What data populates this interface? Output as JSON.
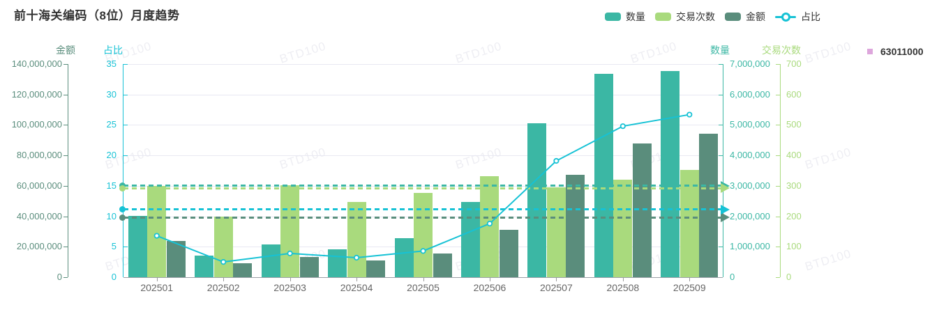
{
  "title": "前十海关编码（8位）月度趋势",
  "legend": {
    "position": "top-right",
    "items": [
      {
        "label": "数量",
        "type": "bar",
        "color": "#3bb7a4"
      },
      {
        "label": "交易次数",
        "type": "bar",
        "color": "#a9da7d"
      },
      {
        "label": "金额",
        "type": "bar",
        "color": "#5a8d7c"
      },
      {
        "label": "占比",
        "type": "line",
        "color": "#16c2d5"
      }
    ]
  },
  "side_legend": {
    "label": "63011000",
    "color": "#dda6dc"
  },
  "watermark_text": "BTD100",
  "chart_data": {
    "type": "combo bar+line, 4 y-axes",
    "title": "前十海关编码（8位）月度趋势",
    "categories": [
      "202501",
      "202502",
      "202503",
      "202504",
      "202505",
      "202506",
      "202507",
      "202508",
      "202509"
    ],
    "series": [
      {
        "name": "数量",
        "type": "bar",
        "yaxis": "quantity",
        "color": "#3bb7a4",
        "values": [
          2010000,
          700000,
          1070000,
          910000,
          1270000,
          2470000,
          5060000,
          6690000,
          6780000
        ],
        "average_markline": 3000000
      },
      {
        "name": "交易次数",
        "type": "bar",
        "yaxis": "transactions",
        "color": "#a9da7d",
        "values": [
          300,
          199,
          303,
          248,
          276,
          332,
          295,
          320,
          352
        ],
        "average_markline": 292
      },
      {
        "name": "金额",
        "type": "bar",
        "yaxis": "amount",
        "color": "#5a8d7c",
        "values": [
          23600000,
          9150000,
          13400000,
          11100000,
          15400000,
          31100000,
          67100000,
          87900000,
          94300000
        ],
        "average_markline": 39300000
      },
      {
        "name": "占比",
        "type": "line",
        "yaxis": "ratio",
        "color": "#16c2d5",
        "values": [
          6.8,
          2.5,
          3.9,
          3.2,
          4.3,
          8.8,
          19.1,
          24.8,
          26.7
        ],
        "average_markline": 11.1
      }
    ],
    "y_axes": [
      {
        "id": "amount",
        "title": "金额",
        "side": "left",
        "min": 0,
        "max": 140000000,
        "color": "#5a8d7c",
        "labels": [
          "140,000,000",
          "120,000,000",
          "100,000,000",
          "80,000,000",
          "60,000,000",
          "40,000,000",
          "20,000,000",
          "0"
        ]
      },
      {
        "id": "ratio",
        "title": "占比",
        "side": "left",
        "min": 0,
        "max": 35,
        "color": "#16c2d5",
        "labels": [
          "35",
          "30",
          "25",
          "20",
          "15",
          "10",
          "5",
          "0"
        ]
      },
      {
        "id": "quantity",
        "title": "数量",
        "side": "right",
        "min": 0,
        "max": 7000000,
        "color": "#3bb7a4",
        "labels": [
          "7,000,000",
          "6,000,000",
          "5,000,000",
          "4,000,000",
          "3,000,000",
          "2,000,000",
          "1,000,000",
          "0"
        ]
      },
      {
        "id": "transactions",
        "title": "交易次数",
        "side": "right",
        "min": 0,
        "max": 700,
        "color": "#a9da7d",
        "labels": [
          "700",
          "600",
          "500",
          "400",
          "300",
          "200",
          "100",
          "0"
        ]
      }
    ],
    "grid": true,
    "x_label_color": "#666"
  }
}
